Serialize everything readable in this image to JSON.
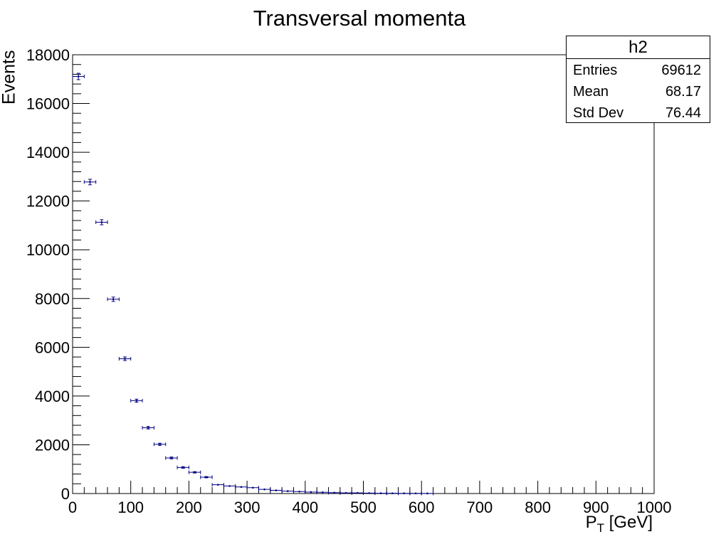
{
  "chart_data": {
    "type": "scatter",
    "title": "Transversal momenta",
    "xlabel": "P_T [GeV]",
    "xlabel_main": "P",
    "xlabel_sub": "T",
    "xlabel_unit": " [GeV]",
    "ylabel": "Events",
    "xlim": [
      0,
      1000
    ],
    "ylim": [
      0,
      18000
    ],
    "bin_width": 20,
    "x_ticks": [
      0,
      100,
      200,
      300,
      400,
      500,
      600,
      700,
      800,
      900,
      1000
    ],
    "y_ticks": [
      0,
      2000,
      4000,
      6000,
      8000,
      10000,
      12000,
      14000,
      16000,
      18000
    ],
    "grid": false,
    "series": [
      {
        "x": [
          10,
          30,
          50,
          70,
          90,
          110,
          130,
          150,
          170,
          190,
          210,
          230,
          250,
          270,
          290,
          310,
          330,
          350,
          370,
          390,
          410,
          430,
          450,
          470,
          490,
          510,
          530,
          550,
          570,
          590,
          610
        ],
        "y": [
          17110,
          12780,
          11130,
          7970,
          5530,
          3810,
          2700,
          2020,
          1460,
          1070,
          870,
          670,
          360,
          310,
          270,
          240,
          170,
          130,
          100,
          80,
          60,
          50,
          35,
          25,
          25,
          18,
          12,
          10,
          8,
          6,
          5
        ],
        "err": [
          131,
          113,
          105,
          89,
          74,
          62,
          52,
          45,
          38,
          33,
          29,
          26,
          19,
          18,
          16,
          15,
          13,
          11,
          10,
          9,
          8,
          7,
          6,
          5,
          5,
          4,
          3,
          3,
          3,
          2,
          2
        ]
      }
    ],
    "stats": {
      "name": "h2",
      "rows": [
        {
          "label": "Entries",
          "value": "69612"
        },
        {
          "label": "Mean",
          "value": "68.17"
        },
        {
          "label": "Std Dev",
          "value": "76.44"
        }
      ]
    },
    "colors": {
      "marker": "#000080",
      "axis": "#000000"
    }
  }
}
